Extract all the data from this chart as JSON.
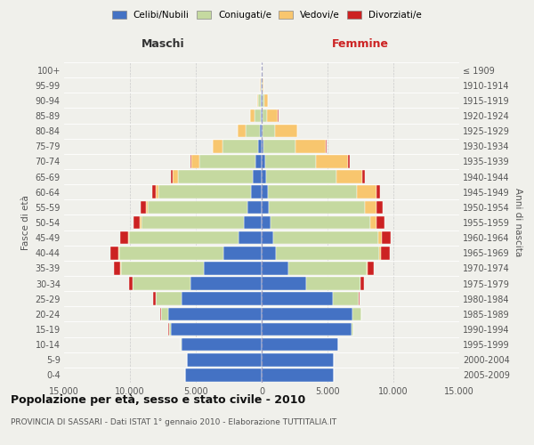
{
  "age_groups": [
    "0-4",
    "5-9",
    "10-14",
    "15-19",
    "20-24",
    "25-29",
    "30-34",
    "35-39",
    "40-44",
    "45-49",
    "50-54",
    "55-59",
    "60-64",
    "65-69",
    "70-74",
    "75-79",
    "80-84",
    "85-89",
    "90-94",
    "95-99",
    "100+"
  ],
  "birth_years": [
    "2005-2009",
    "2000-2004",
    "1995-1999",
    "1990-1994",
    "1985-1989",
    "1980-1984",
    "1975-1979",
    "1970-1974",
    "1965-1969",
    "1960-1964",
    "1955-1959",
    "1950-1954",
    "1945-1949",
    "1940-1944",
    "1935-1939",
    "1930-1934",
    "1925-1929",
    "1920-1924",
    "1915-1919",
    "1910-1914",
    "≤ 1909"
  ],
  "male_celibi": [
    5800,
    5700,
    6100,
    6900,
    7100,
    6100,
    5400,
    4400,
    2900,
    1750,
    1350,
    1050,
    820,
    650,
    450,
    300,
    150,
    100,
    70,
    40,
    15
  ],
  "male_coniugati": [
    5,
    5,
    20,
    150,
    550,
    1950,
    4400,
    6300,
    7900,
    8300,
    7800,
    7600,
    7000,
    5700,
    4300,
    2700,
    1100,
    450,
    170,
    50,
    10
  ],
  "male_vedovi": [
    0,
    0,
    0,
    2,
    5,
    10,
    20,
    30,
    60,
    80,
    100,
    150,
    200,
    400,
    600,
    700,
    550,
    300,
    80,
    25,
    5
  ],
  "male_divorziati": [
    0,
    0,
    2,
    10,
    50,
    150,
    280,
    480,
    650,
    580,
    470,
    420,
    270,
    130,
    70,
    40,
    20,
    10,
    5,
    3,
    1
  ],
  "female_celibi": [
    5500,
    5500,
    5800,
    6800,
    6900,
    5400,
    3400,
    2000,
    1100,
    850,
    650,
    550,
    450,
    350,
    250,
    150,
    80,
    80,
    60,
    30,
    10
  ],
  "female_coniugati": [
    5,
    5,
    20,
    150,
    650,
    1950,
    4100,
    6000,
    7800,
    8000,
    7600,
    7300,
    6800,
    5300,
    3900,
    2400,
    900,
    350,
    120,
    40,
    8
  ],
  "female_vedovi": [
    0,
    0,
    0,
    2,
    5,
    15,
    30,
    70,
    150,
    280,
    480,
    850,
    1450,
    2000,
    2400,
    2300,
    1700,
    800,
    300,
    70,
    10
  ],
  "female_divorziati": [
    0,
    0,
    2,
    10,
    30,
    100,
    230,
    470,
    680,
    670,
    580,
    470,
    320,
    220,
    120,
    80,
    40,
    20,
    8,
    3,
    1
  ],
  "color_celibi": "#4472c4",
  "color_coniugati": "#c5d9a0",
  "color_vedovi": "#f8c66e",
  "color_divorziati": "#cc2222",
  "xlim": 15000,
  "xtick_positions": [
    -15000,
    -10000,
    -5000,
    0,
    5000,
    10000,
    15000
  ],
  "xtick_labels": [
    "15.000",
    "10.000",
    "5.000",
    "0",
    "5.000",
    "10.000",
    "15.000"
  ],
  "title": "Popolazione per età, sesso e stato civile - 2010",
  "subtitle": "PROVINCIA DI SASSARI - Dati ISTAT 1° gennaio 2010 - Elaborazione TUTTITALIA.IT",
  "label_maschi": "Maschi",
  "label_femmine": "Femmine",
  "ylabel_left": "Fasce di età",
  "ylabel_right": "Anni di nascita",
  "legend_labels": [
    "Celibi/Nubili",
    "Coniugati/e",
    "Vedovi/e",
    "Divorziati/e"
  ],
  "bg_color": "#f0f0eb",
  "grid_color": "#ffffff",
  "bar_height": 0.85
}
